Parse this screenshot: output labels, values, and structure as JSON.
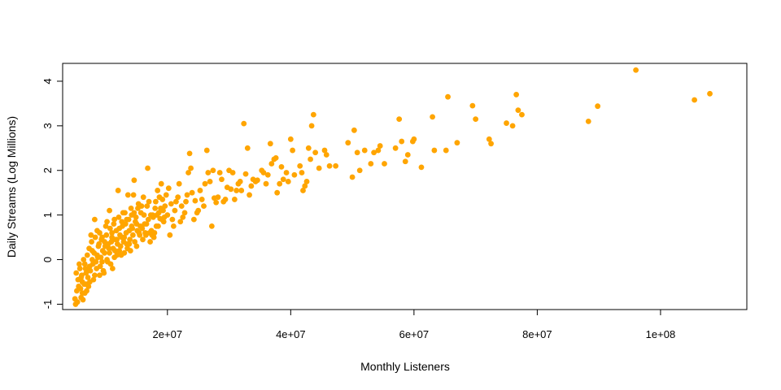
{
  "chart_data": {
    "type": "scatter",
    "title": "",
    "xlabel": "Monthly Listeners",
    "ylabel": "Daily Streams (Log Millions)",
    "xlim": [
      3000000,
      114000000
    ],
    "ylim": [
      -1.12,
      4.4
    ],
    "x_ticks": [
      20000000,
      40000000,
      60000000,
      80000000,
      100000000
    ],
    "x_tick_labels": [
      "2e+07",
      "4e+07",
      "6e+07",
      "8e+07",
      "1e+08"
    ],
    "y_ticks": [
      -1,
      0,
      1,
      2,
      3,
      4
    ],
    "y_tick_labels": [
      "-1",
      "0",
      "1",
      "2",
      "3",
      "4"
    ],
    "grid": false,
    "legend": "none",
    "colors": {
      "points": "#FFA500"
    },
    "points": [
      [
        96000000,
        4.25
      ],
      [
        108000000,
        3.72
      ],
      [
        105500000,
        3.58
      ],
      [
        89800000,
        3.44
      ],
      [
        88300000,
        3.1
      ],
      [
        77500000,
        3.25
      ],
      [
        76600000,
        3.7
      ],
      [
        76900000,
        3.35
      ],
      [
        76000000,
        3.0
      ],
      [
        75000000,
        3.06
      ],
      [
        72500000,
        2.6
      ],
      [
        72200000,
        2.7
      ],
      [
        70000000,
        3.15
      ],
      [
        69500000,
        3.45
      ],
      [
        67000000,
        2.62
      ],
      [
        65500000,
        3.65
      ],
      [
        65200000,
        2.45
      ],
      [
        63300000,
        2.45
      ],
      [
        63000000,
        3.2
      ],
      [
        61200000,
        2.07
      ],
      [
        60000000,
        2.7
      ],
      [
        59800000,
        2.65
      ],
      [
        59000000,
        2.35
      ],
      [
        58600000,
        2.2
      ],
      [
        58000000,
        2.65
      ],
      [
        57600000,
        3.15
      ],
      [
        57000000,
        2.5
      ],
      [
        55200000,
        2.15
      ],
      [
        54500000,
        2.55
      ],
      [
        54200000,
        2.45
      ],
      [
        53500000,
        2.4
      ],
      [
        53000000,
        2.15
      ],
      [
        52000000,
        2.45
      ],
      [
        51200000,
        2.0
      ],
      [
        50800000,
        2.4
      ],
      [
        50300000,
        2.9
      ],
      [
        50000000,
        1.85
      ],
      [
        49300000,
        2.62
      ],
      [
        47300000,
        2.1
      ],
      [
        46300000,
        2.1
      ],
      [
        45800000,
        2.35
      ],
      [
        45500000,
        2.45
      ],
      [
        44600000,
        2.05
      ],
      [
        44000000,
        2.4
      ],
      [
        43700000,
        3.25
      ],
      [
        43400000,
        3.0
      ],
      [
        43200000,
        2.25
      ],
      [
        42900000,
        2.5
      ],
      [
        42600000,
        1.75
      ],
      [
        42300000,
        1.65
      ],
      [
        42000000,
        1.55
      ],
      [
        41800000,
        1.95
      ],
      [
        41500000,
        2.1
      ],
      [
        40600000,
        1.9
      ],
      [
        40300000,
        2.45
      ],
      [
        40000000,
        2.7
      ],
      [
        39600000,
        1.75
      ],
      [
        39300000,
        1.95
      ],
      [
        38800000,
        1.8
      ],
      [
        38500000,
        2.08
      ],
      [
        38200000,
        1.7
      ],
      [
        37800000,
        1.5
      ],
      [
        37600000,
        2.28
      ],
      [
        37300000,
        2.25
      ],
      [
        36900000,
        2.15
      ],
      [
        36700000,
        2.6
      ],
      [
        36300000,
        1.9
      ],
      [
        36000000,
        1.7
      ],
      [
        35600000,
        1.95
      ],
      [
        35300000,
        2.0
      ],
      [
        34600000,
        1.78
      ],
      [
        34300000,
        1.75
      ],
      [
        33900000,
        1.8
      ],
      [
        33600000,
        1.65
      ],
      [
        33300000,
        1.45
      ],
      [
        33000000,
        2.5
      ],
      [
        32700000,
        1.92
      ],
      [
        32400000,
        3.05
      ],
      [
        32000000,
        1.55
      ],
      [
        31800000,
        1.75
      ],
      [
        31500000,
        1.7
      ],
      [
        31200000,
        1.55
      ],
      [
        30900000,
        1.35
      ],
      [
        30600000,
        1.95
      ],
      [
        30300000,
        1.58
      ],
      [
        30000000,
        2.0
      ],
      [
        29700000,
        1.62
      ],
      [
        29400000,
        1.35
      ],
      [
        29100000,
        1.3
      ],
      [
        28800000,
        1.8
      ],
      [
        28500000,
        1.95
      ],
      [
        28200000,
        1.4
      ],
      [
        27900000,
        1.28
      ],
      [
        27600000,
        1.38
      ],
      [
        27400000,
        2.0
      ],
      [
        27200000,
        0.75
      ],
      [
        26900000,
        1.75
      ],
      [
        26600000,
        1.95
      ],
      [
        26400000,
        2.45
      ],
      [
        26100000,
        1.7
      ],
      [
        25900000,
        1.2
      ],
      [
        25600000,
        1.35
      ],
      [
        25300000,
        1.55
      ],
      [
        25000000,
        1.1
      ],
      [
        24800000,
        1.05
      ],
      [
        24500000,
        1.32
      ],
      [
        24300000,
        0.9
      ],
      [
        24000000,
        1.5
      ],
      [
        23800000,
        2.05
      ],
      [
        23600000,
        2.38
      ],
      [
        23400000,
        1.95
      ],
      [
        23200000,
        1.45
      ],
      [
        23000000,
        1.3
      ],
      [
        22800000,
        1.05
      ],
      [
        22500000,
        0.95
      ],
      [
        22300000,
        1.2
      ],
      [
        22100000,
        0.85
      ],
      [
        21900000,
        1.7
      ],
      [
        21700000,
        1.4
      ],
      [
        21400000,
        1.3
      ],
      [
        21200000,
        1.1
      ],
      [
        21000000,
        0.75
      ],
      [
        20800000,
        0.9
      ],
      [
        20600000,
        1.25
      ],
      [
        20400000,
        0.55
      ],
      [
        20200000,
        1.6
      ],
      [
        20000000,
        1.0
      ],
      [
        19800000,
        1.45
      ],
      [
        19600000,
        1.2
      ],
      [
        19400000,
        0.85
      ],
      [
        19200000,
        1.35
      ],
      [
        19000000,
        1.7
      ],
      [
        18800000,
        0.92
      ],
      [
        18600000,
        1.05
      ],
      [
        18400000,
        1.55
      ],
      [
        18200000,
        0.75
      ],
      [
        18000000,
        1.15
      ],
      [
        17800000,
        0.5
      ],
      [
        17600000,
        1.0
      ],
      [
        17400000,
        0.65
      ],
      [
        17200000,
        0.4
      ],
      [
        17000000,
        1.3
      ],
      [
        16800000,
        2.05
      ],
      [
        16600000,
        0.8
      ],
      [
        16400000,
        0.6
      ],
      [
        16200000,
        1.0
      ],
      [
        16000000,
        0.45
      ],
      [
        15800000,
        1.2
      ],
      [
        15600000,
        0.75
      ],
      [
        15400000,
        0.6
      ],
      [
        15200000,
        1.15
      ],
      [
        15000000,
        0.3
      ],
      [
        14800000,
        0.85
      ],
      [
        14600000,
        1.78
      ],
      [
        14400000,
        0.55
      ],
      [
        14200000,
        1.0
      ],
      [
        14000000,
        0.2
      ],
      [
        13800000,
        0.65
      ],
      [
        13600000,
        1.45
      ],
      [
        13400000,
        0.35
      ],
      [
        13200000,
        0.8
      ],
      [
        13000000,
        0.15
      ],
      [
        12800000,
        1.05
      ],
      [
        12600000,
        0.5
      ],
      [
        12400000,
        0.3
      ],
      [
        12200000,
        0.7
      ],
      [
        12000000,
        1.55
      ],
      [
        11800000,
        0.1
      ],
      [
        11600000,
        0.45
      ],
      [
        11400000,
        0.9
      ],
      [
        11200000,
        0.25
      ],
      [
        11000000,
        0.6
      ],
      [
        10800000,
        -0.1
      ],
      [
        10600000,
        1.1
      ],
      [
        10400000,
        0.35
      ],
      [
        10200000,
        0.0
      ],
      [
        10000000,
        0.75
      ],
      [
        9800000,
        0.15
      ],
      [
        9600000,
        -0.25
      ],
      [
        9400000,
        0.5
      ],
      [
        9200000,
        0.05
      ],
      [
        9000000,
        -0.35
      ],
      [
        8800000,
        0.3
      ],
      [
        8600000,
        0.65
      ],
      [
        8400000,
        -0.05
      ],
      [
        8200000,
        0.9
      ],
      [
        8000000,
        -0.45
      ],
      [
        7800000,
        0.2
      ],
      [
        7600000,
        0.55
      ],
      [
        7400000,
        -0.15
      ],
      [
        7200000,
        -0.6
      ],
      [
        7000000,
        0.1
      ],
      [
        6800000,
        -0.3
      ],
      [
        6600000,
        -0.75
      ],
      [
        6400000,
        0.0
      ],
      [
        6200000,
        -0.5
      ],
      [
        6000000,
        -0.85
      ],
      [
        5800000,
        -0.2
      ],
      [
        5600000,
        -0.6
      ],
      [
        5400000,
        -0.95
      ],
      [
        5200000,
        -0.3
      ],
      [
        5000000,
        -0.88
      ],
      [
        5100000,
        -1.0
      ],
      [
        5300000,
        -0.7
      ],
      [
        5500000,
        -0.45
      ],
      [
        5700000,
        -0.1
      ],
      [
        5900000,
        -0.65
      ],
      [
        6100000,
        -0.35
      ],
      [
        6300000,
        -0.9
      ],
      [
        6500000,
        -0.55
      ],
      [
        6700000,
        -0.2
      ],
      [
        6900000,
        -0.7
      ],
      [
        7100000,
        -0.4
      ],
      [
        7300000,
        0.25
      ],
      [
        7500000,
        -0.25
      ],
      [
        7700000,
        0.4
      ],
      [
        7900000,
        -0.1
      ],
      [
        8100000,
        0.15
      ],
      [
        8300000,
        0.5
      ],
      [
        8500000,
        -0.2
      ],
      [
        8700000,
        0.05
      ],
      [
        8900000,
        0.35
      ],
      [
        9100000,
        -0.15
      ],
      [
        9300000,
        0.45
      ],
      [
        9500000,
        0.2
      ],
      [
        9700000,
        -0.3
      ],
      [
        9900000,
        0.3
      ],
      [
        10100000,
        0.55
      ],
      [
        10300000,
        -0.05
      ],
      [
        10500000,
        0.25
      ],
      [
        10700000,
        0.7
      ],
      [
        10900000,
        0.4
      ],
      [
        11100000,
        -0.2
      ],
      [
        11300000,
        0.8
      ],
      [
        11500000,
        0.2
      ],
      [
        11700000,
        0.65
      ],
      [
        11900000,
        0.35
      ],
      [
        12100000,
        0.95
      ],
      [
        12300000,
        0.55
      ],
      [
        12500000,
        0.1
      ],
      [
        12700000,
        0.75
      ],
      [
        12900000,
        0.4
      ],
      [
        13100000,
        1.05
      ],
      [
        13300000,
        0.6
      ],
      [
        13500000,
        0.25
      ],
      [
        13700000,
        0.9
      ],
      [
        13900000,
        0.45
      ],
      [
        14100000,
        1.15
      ],
      [
        14300000,
        0.7
      ],
      [
        14500000,
        1.45
      ],
      [
        14700000,
        0.4
      ],
      [
        14900000,
        0.95
      ],
      [
        15100000,
        0.65
      ],
      [
        15300000,
        1.25
      ],
      [
        15500000,
        0.55
      ],
      [
        15700000,
        1.05
      ],
      [
        15900000,
        0.7
      ],
      [
        16100000,
        1.4
      ],
      [
        16300000,
        0.8
      ],
      [
        16500000,
        0.55
      ],
      [
        16700000,
        1.2
      ],
      [
        16900000,
        0.9
      ],
      [
        17100000,
        0.6
      ],
      [
        17300000,
        1.0
      ],
      [
        17500000,
        0.55
      ],
      [
        17700000,
        0.95
      ],
      [
        17900000,
        0.6
      ],
      [
        18100000,
        1.3
      ],
      [
        18300000,
        1.0
      ],
      [
        18500000,
        0.75
      ],
      [
        18700000,
        1.4
      ],
      [
        18900000,
        1.15
      ],
      [
        19100000,
        0.9
      ],
      [
        19300000,
        1.1
      ],
      [
        19500000,
        0.95
      ],
      [
        6000000,
        -0.4
      ],
      [
        6200000,
        -0.75
      ],
      [
        6600000,
        -0.1
      ],
      [
        6800000,
        -0.55
      ],
      [
        7000000,
        -0.25
      ],
      [
        7400000,
        -0.5
      ],
      [
        7800000,
        0.0
      ],
      [
        8200000,
        -0.35
      ],
      [
        8600000,
        0.1
      ],
      [
        9000000,
        0.6
      ],
      [
        9400000,
        -0.05
      ],
      [
        9800000,
        0.4
      ],
      [
        10200000,
        0.85
      ],
      [
        10600000,
        0.15
      ],
      [
        11000000,
        0.5
      ],
      [
        11400000,
        0.05
      ],
      [
        11800000,
        0.45
      ],
      [
        12200000,
        0.2
      ],
      [
        12600000,
        0.85
      ],
      [
        13000000,
        0.5
      ],
      [
        13400000,
        0.9
      ],
      [
        13800000,
        0.35
      ],
      [
        14200000,
        0.75
      ],
      [
        14600000,
        1.05
      ],
      [
        15000000,
        0.8
      ]
    ]
  }
}
